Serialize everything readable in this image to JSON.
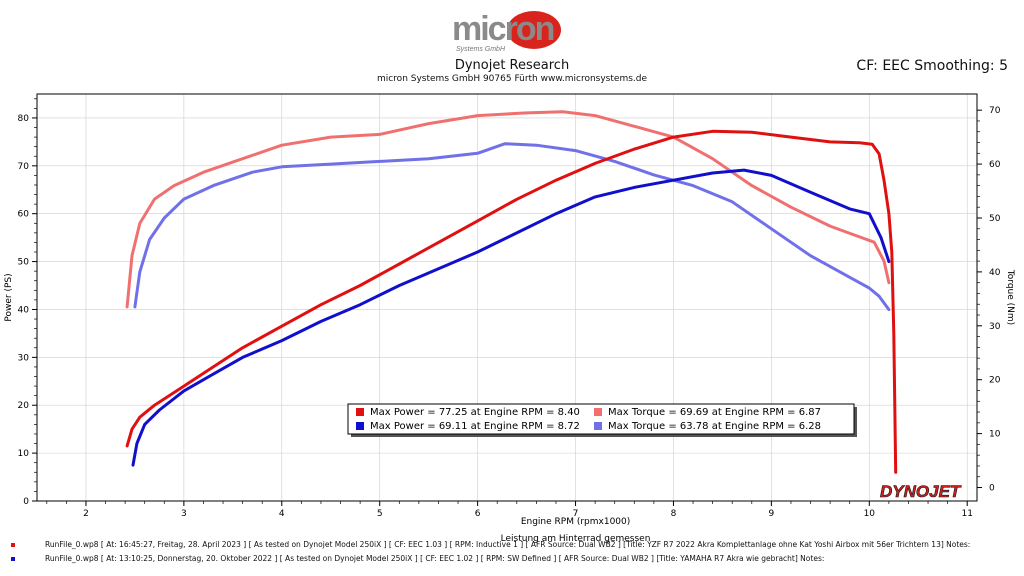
{
  "header": {
    "brand_main": "micron",
    "brand_sub": "Systems GmbH",
    "title": "Dynojet Research",
    "subtitle": "micron Systems GmbH  90765 Fürth www.micronsystems.de",
    "cf_label": "CF: EEC Smoothing: 5"
  },
  "dynojet_logo": "DYNOJET",
  "colors": {
    "power1": "#e01010",
    "power2": "#1010cc",
    "torque1": "#f07070",
    "torque2": "#7070e8",
    "frame": "#000000",
    "grid": "#cfcfcf"
  },
  "chart_data": {
    "type": "line",
    "xlabel": "Engine RPM (rpmx1000)",
    "xlabel2": "Leistung am Hinterrad gemessen",
    "ylabel": "Power (PS)",
    "y2label": "Torque (Nm)",
    "xlim": [
      1.5,
      11.1
    ],
    "ylim": [
      0,
      85
    ],
    "y2lim": [
      -2.5,
      73
    ],
    "xticks": [
      2,
      3,
      4,
      5,
      6,
      7,
      8,
      9,
      10,
      11
    ],
    "yticks": [
      0,
      10,
      20,
      30,
      40,
      50,
      60,
      70,
      80
    ],
    "y2ticks": [
      0,
      10,
      20,
      30,
      40,
      50,
      60,
      70
    ],
    "series": [
      {
        "name": "Max Power",
        "axis": "left",
        "color": "#e01010",
        "x": [
          2.42,
          2.47,
          2.55,
          2.7,
          3.0,
          3.3,
          3.6,
          4.0,
          4.4,
          4.8,
          5.2,
          5.6,
          6.0,
          6.4,
          6.8,
          7.2,
          7.6,
          8.0,
          8.4,
          8.8,
          9.2,
          9.6,
          9.9,
          10.03,
          10.1,
          10.15,
          10.2,
          10.23,
          10.25,
          10.27
        ],
        "y": [
          11.5,
          15,
          17.5,
          20,
          24,
          28,
          32,
          36.5,
          41,
          45,
          49.5,
          54,
          58.5,
          63,
          67,
          70.5,
          73.5,
          76,
          77.2,
          77,
          76,
          75,
          74.8,
          74.5,
          72.5,
          67,
          60,
          52,
          35,
          6
        ]
      },
      {
        "name": "Max Power",
        "axis": "left",
        "color": "#1010cc",
        "x": [
          2.48,
          2.52,
          2.6,
          2.75,
          3.0,
          3.3,
          3.6,
          4.0,
          4.4,
          4.8,
          5.2,
          5.6,
          6.0,
          6.4,
          6.8,
          7.2,
          7.6,
          8.0,
          8.4,
          8.72,
          9.0,
          9.4,
          9.8,
          10.0,
          10.12,
          10.2
        ],
        "y": [
          7.5,
          12,
          16,
          19,
          23,
          26.5,
          30,
          33.5,
          37.5,
          41,
          45,
          48.5,
          52,
          56,
          60,
          63.5,
          65.5,
          67,
          68.5,
          69.1,
          68,
          64.5,
          61,
          60,
          55,
          50
        ]
      },
      {
        "name": "Max Torque",
        "axis": "right",
        "color": "#f07070",
        "x": [
          2.42,
          2.47,
          2.55,
          2.7,
          2.9,
          3.2,
          3.6,
          4.0,
          4.5,
          5.0,
          5.5,
          6.0,
          6.5,
          6.87,
          7.2,
          7.6,
          8.0,
          8.4,
          8.8,
          9.2,
          9.6,
          9.9,
          10.05,
          10.15,
          10.2
        ],
        "y": [
          33.5,
          43,
          49,
          53.5,
          56,
          58.5,
          61,
          63.5,
          65,
          65.5,
          67.5,
          69,
          69.5,
          69.69,
          69,
          67,
          65,
          61,
          56,
          52,
          48.5,
          46.5,
          45.5,
          42,
          38
        ]
      },
      {
        "name": "Max Torque",
        "axis": "right",
        "color": "#7070e8",
        "x": [
          2.5,
          2.55,
          2.65,
          2.8,
          3.0,
          3.3,
          3.7,
          4.0,
          4.5,
          5.0,
          5.5,
          6.0,
          6.28,
          6.6,
          7.0,
          7.4,
          7.8,
          8.2,
          8.6,
          9.0,
          9.4,
          9.8,
          10.0,
          10.1,
          10.2
        ],
        "y": [
          33.5,
          40,
          46,
          50,
          53.5,
          56,
          58.5,
          59.5,
          60,
          60.5,
          61,
          62,
          63.78,
          63.5,
          62.5,
          60.5,
          58,
          56,
          53,
          48,
          43,
          39,
          37,
          35.5,
          33
        ]
      }
    ],
    "legend": [
      {
        "label": "Max Power = 77.25 at Engine RPM = 8.40",
        "color": "#e01010"
      },
      {
        "label": "Max Torque = 69.69 at Engine RPM = 6.87",
        "color": "#f07070"
      },
      {
        "label": "Max Power = 69.11 at Engine RPM = 8.72",
        "color": "#1010cc"
      },
      {
        "label": "Max Torque = 63.78 at Engine RPM = 6.28",
        "color": "#7070e8"
      }
    ]
  },
  "footer": {
    "run1": "RunFile_0.wp8  [  At:  16:45:27,  Freitag,  28.  April  2023  ]  [  As  tested  on  Dynojet  Model  250iX  ]  [  CF:  EEC  1.03  ]  [  RPM:  Inductive  1  ]  [  AFR  Source:  Dual  WB2  ]  [Title:  YZF  R7  2022  Akra  Komplettanlage  ohne  Kat  Yoshi  Airbox  mit  56er  Trichtern    13]   Notes:",
    "run2": "RunFile_0.wp8  [  At:  13:10:25,  Donnerstag,  20.  Oktober  2022  ]  [  As  tested  on  Dynojet  Model  250iX  ]  [  CF:  EEC  1.02  ]  [  RPM:  SW  Defined  ]  [  AFR  Source:  Dual  WB2  ]  [Title:  YAMAHA  R7  Akra  wie  gebracht]   Notes:"
  }
}
